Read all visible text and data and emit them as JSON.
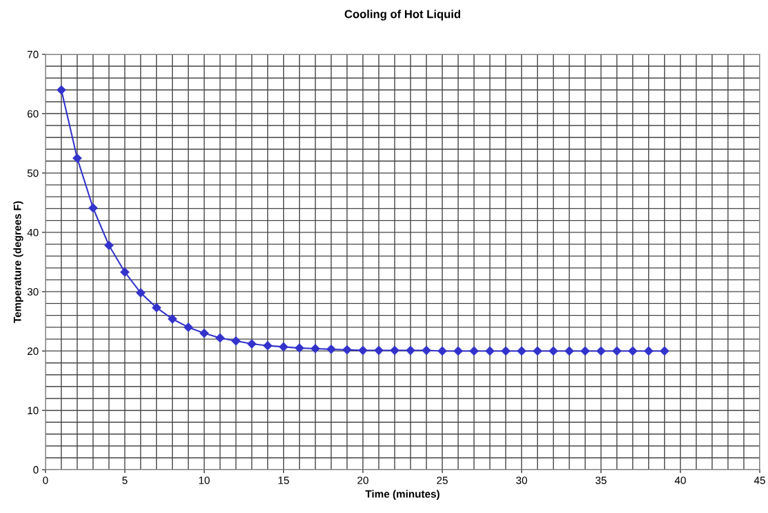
{
  "chart_data": {
    "type": "line",
    "title": "Cooling of Hot Liquid",
    "xlabel": "Time (minutes)",
    "ylabel": "Temperature (degrees F)",
    "x": [
      1,
      2,
      3,
      4,
      5,
      6,
      7,
      8,
      9,
      10,
      11,
      12,
      13,
      14,
      15,
      16,
      17,
      18,
      19,
      20,
      21,
      22,
      23,
      24,
      25,
      26,
      27,
      28,
      29,
      30,
      31,
      32,
      33,
      34,
      35,
      36,
      37,
      38,
      39
    ],
    "series": [
      {
        "color": "#3333cc",
        "values": [
          64.0,
          52.5,
          44.1,
          37.8,
          33.3,
          29.8,
          27.3,
          25.4,
          24.0,
          23.0,
          22.2,
          21.7,
          21.2,
          20.9,
          20.7,
          20.5,
          20.4,
          20.3,
          20.2,
          20.1,
          20.1,
          20.1,
          20.1,
          20.1,
          20.0,
          20.0,
          20.0,
          20.0,
          20.0,
          20.0,
          20.0,
          20.0,
          20.0,
          20.0,
          20.0,
          20.0,
          20.0,
          20.0,
          20.0
        ]
      }
    ],
    "xlim": [
      0,
      45
    ],
    "ylim": [
      0,
      70
    ],
    "xticks": [
      0,
      5,
      10,
      15,
      20,
      25,
      30,
      35,
      40,
      45
    ],
    "yticks": [
      0,
      10,
      20,
      30,
      40,
      50,
      60,
      70
    ],
    "grid": true,
    "marker": "diamond",
    "line_style": "solid"
  }
}
